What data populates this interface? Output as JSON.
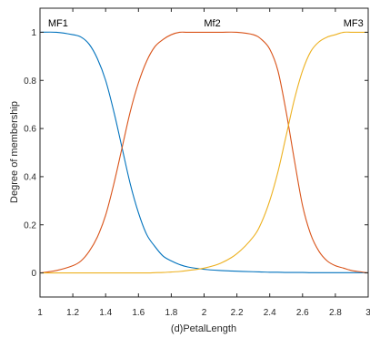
{
  "chart_data": {
    "type": "line",
    "xlabel": "(d)PetalLength",
    "ylabel": "Degree of membership",
    "xlim": [
      1,
      3
    ],
    "ylim": [
      -0.1,
      1.1
    ],
    "grid": false,
    "x_ticks": [
      1,
      1.2,
      1.4,
      1.6,
      1.8,
      2,
      2.2,
      2.4,
      2.6,
      2.8,
      3
    ],
    "x_tick_labels": [
      "1",
      "1.2",
      "1.4",
      "1.6",
      "1.8",
      "2",
      "2.2",
      "2.4",
      "2.6",
      "2.8",
      "3"
    ],
    "y_ticks": [
      0,
      0.2,
      0.4,
      0.6,
      0.8,
      1
    ],
    "y_tick_labels": [
      "0",
      "0.2",
      "0.4",
      "0.6",
      "0.8",
      "1"
    ],
    "x": [
      1.0,
      1.1,
      1.2,
      1.25,
      1.3,
      1.35,
      1.4,
      1.45,
      1.5,
      1.55,
      1.6,
      1.65,
      1.7,
      1.75,
      1.8,
      1.85,
      1.9,
      2.0,
      2.1,
      2.2,
      2.3,
      2.35,
      2.4,
      2.45,
      2.5,
      2.55,
      2.6,
      2.65,
      2.7,
      2.75,
      2.8,
      2.85,
      2.9,
      2.95,
      3.0
    ],
    "series": [
      {
        "name": "MF1",
        "color": "#0072BD",
        "values": [
          1.0,
          1.0,
          0.99,
          0.98,
          0.95,
          0.89,
          0.8,
          0.67,
          0.52,
          0.37,
          0.25,
          0.16,
          0.11,
          0.07,
          0.05,
          0.035,
          0.025,
          0.015,
          0.01,
          0.007,
          0.005,
          0.004,
          0.003,
          0.003,
          0.002,
          0.002,
          0.002,
          0.001,
          0.001,
          0.001,
          0.001,
          0.001,
          0.001,
          0.001,
          0.001
        ]
      },
      {
        "name": "Mf2",
        "color": "#D95319",
        "values": [
          0.0,
          0.01,
          0.03,
          0.05,
          0.09,
          0.15,
          0.24,
          0.37,
          0.52,
          0.67,
          0.79,
          0.88,
          0.94,
          0.97,
          0.99,
          1.0,
          1.0,
          1.0,
          1.0,
          1.0,
          0.99,
          0.97,
          0.93,
          0.84,
          0.67,
          0.47,
          0.28,
          0.16,
          0.09,
          0.05,
          0.03,
          0.02,
          0.01,
          0.005,
          0.0
        ]
      },
      {
        "name": "MF3",
        "color": "#EDB120",
        "values": [
          0.0,
          0.0,
          0.0,
          0.0,
          0.0,
          0.0,
          0.0,
          0.0,
          0.0,
          0.0,
          0.0,
          0.0,
          0.001,
          0.002,
          0.004,
          0.006,
          0.01,
          0.02,
          0.04,
          0.08,
          0.15,
          0.21,
          0.3,
          0.42,
          0.57,
          0.72,
          0.84,
          0.92,
          0.96,
          0.98,
          0.99,
          1.0,
          1.0,
          1.0,
          1.0
        ]
      }
    ],
    "mf_labels": [
      {
        "text": "MF1",
        "x": 1.11,
        "y": 1.04
      },
      {
        "text": "Mf2",
        "x": 2.05,
        "y": 1.04
      },
      {
        "text": "MF3",
        "x": 2.91,
        "y": 1.04
      }
    ]
  }
}
